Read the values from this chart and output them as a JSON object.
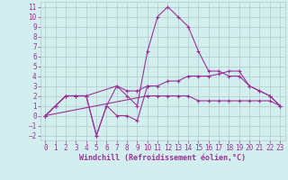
{
  "x": [
    0,
    1,
    2,
    3,
    4,
    5,
    6,
    7,
    8,
    9,
    10,
    11,
    12,
    13,
    14,
    15,
    16,
    17,
    18,
    19,
    20,
    21,
    22,
    23
  ],
  "line1": [
    0,
    1,
    2,
    2,
    2,
    -2,
    1,
    0,
    0,
    -0.5,
    3,
    null,
    null,
    null,
    null,
    null,
    null,
    null,
    null,
    null,
    null,
    null,
    null,
    null
  ],
  "line2": [
    0,
    1,
    2,
    2,
    2,
    -2,
    1,
    3,
    2,
    1,
    6.5,
    10,
    11,
    10,
    9,
    6.5,
    4.5,
    4.5,
    4,
    4,
    3,
    2.5,
    2,
    1
  ],
  "line3": [
    0,
    1,
    2,
    2,
    2,
    null,
    null,
    3,
    2.5,
    2.5,
    3,
    3,
    3.5,
    3.5,
    4,
    4,
    4,
    4.2,
    4.5,
    4.5,
    3,
    2.5,
    2,
    1
  ],
  "line4": [
    0,
    null,
    null,
    null,
    null,
    null,
    null,
    null,
    null,
    null,
    2,
    2,
    2,
    2,
    2,
    1.5,
    1.5,
    1.5,
    1.5,
    1.5,
    1.5,
    1.5,
    1.5,
    1
  ],
  "color": "#993399",
  "bg_color": "#d2eeee",
  "grid_color": "#b0c8c8",
  "xlabel": "Windchill (Refroidissement éolien,°C)",
  "ylim": [
    -2.5,
    11.5
  ],
  "xlim": [
    -0.5,
    23.5
  ],
  "yticks": [
    -2,
    -1,
    0,
    1,
    2,
    3,
    4,
    5,
    6,
    7,
    8,
    9,
    10,
    11
  ],
  "xticks": [
    0,
    1,
    2,
    3,
    4,
    5,
    6,
    7,
    8,
    9,
    10,
    11,
    12,
    13,
    14,
    15,
    16,
    17,
    18,
    19,
    20,
    21,
    22,
    23
  ],
  "xlabel_fontsize": 6.0,
  "tick_fontsize": 5.5
}
